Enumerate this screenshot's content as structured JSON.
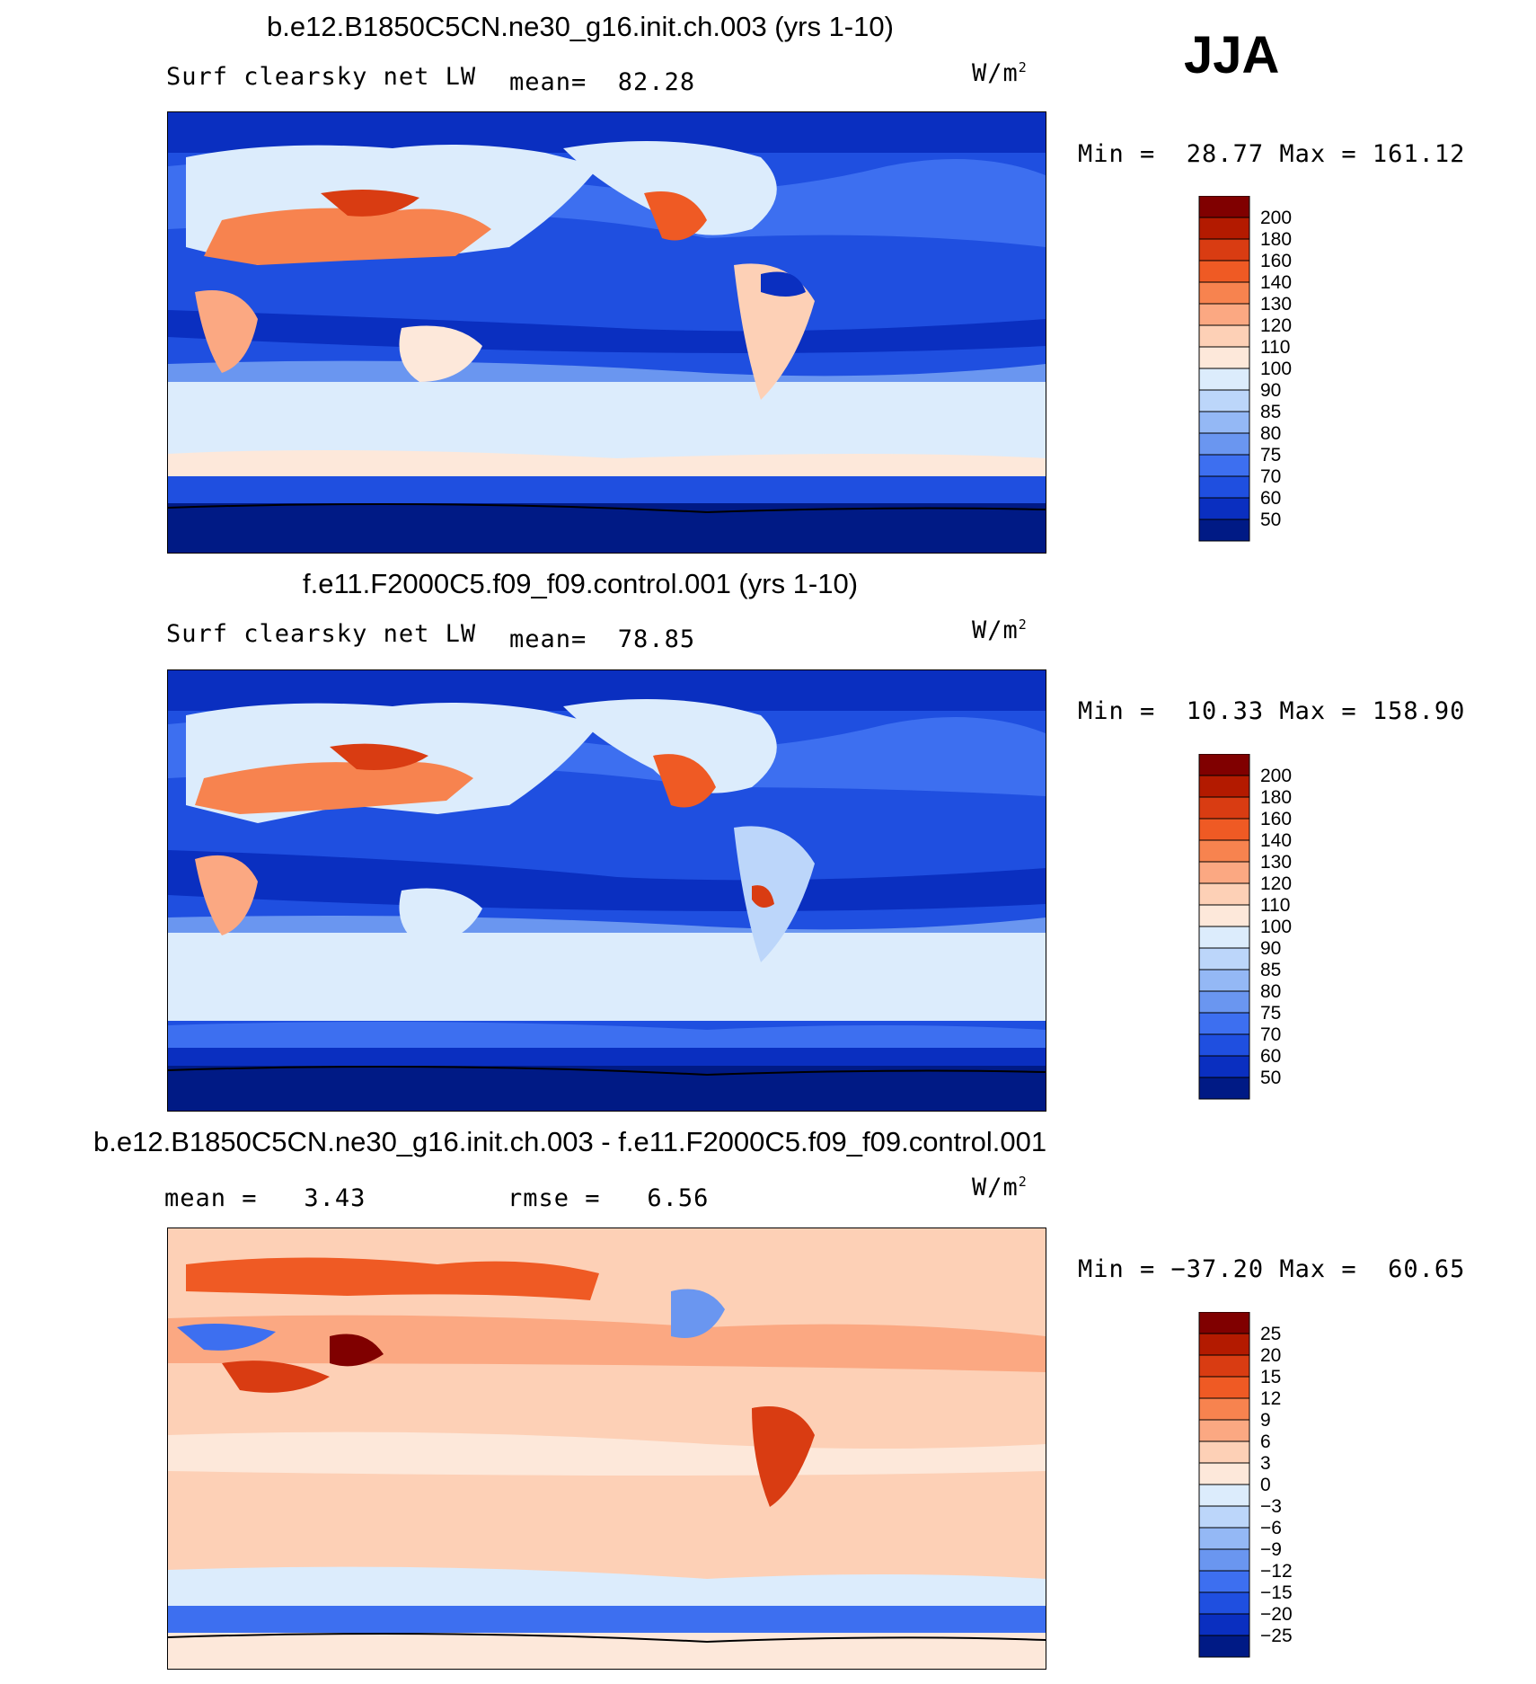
{
  "season": "JJA",
  "panels": [
    {
      "title": "b.e12.B1850C5CN.ne30_g16.init.ch.003 (yrs 1-10)",
      "variable": "Surf clearsky net LW",
      "stat1_label": "mean=",
      "stat1_value": "82.28",
      "units_base": "W/m",
      "units_exp": "2",
      "min_label": "Min =",
      "min_value": "28.77",
      "max_label": "Max =",
      "max_value": "161.12",
      "colorbar": {
        "levels": [
          "200",
          "180",
          "160",
          "140",
          "130",
          "120",
          "110",
          "100",
          "90",
          "85",
          "80",
          "75",
          "70",
          "60",
          "50"
        ],
        "colors": [
          "#800000",
          "#b31a00",
          "#d93c12",
          "#ef5a24",
          "#f7834f",
          "#fba882",
          "#fdd0b6",
          "#fde8da",
          "#dcecfc",
          "#bcd6fa",
          "#94b8f5",
          "#6a96f0",
          "#3d6ff0",
          "#1f4fe0",
          "#0a2fc0",
          "#001a85"
        ]
      }
    },
    {
      "title": "f.e11.F2000C5.f09_f09.control.001 (yrs 1-10)",
      "variable": "Surf clearsky net LW",
      "stat1_label": "mean=",
      "stat1_value": "78.85",
      "units_base": "W/m",
      "units_exp": "2",
      "min_label": "Min =",
      "min_value": "10.33",
      "max_label": "Max =",
      "max_value": "158.90",
      "colorbar": {
        "levels": [
          "200",
          "180",
          "160",
          "140",
          "130",
          "120",
          "110",
          "100",
          "90",
          "85",
          "80",
          "75",
          "70",
          "60",
          "50"
        ],
        "colors": [
          "#800000",
          "#b31a00",
          "#d93c12",
          "#ef5a24",
          "#f7834f",
          "#fba882",
          "#fdd0b6",
          "#fde8da",
          "#dcecfc",
          "#bcd6fa",
          "#94b8f5",
          "#6a96f0",
          "#3d6ff0",
          "#1f4fe0",
          "#0a2fc0",
          "#001a85"
        ]
      }
    },
    {
      "title": "b.e12.B1850C5CN.ne30_g16.init.ch.003 - f.e11.F2000C5.f09_f09.control.001",
      "stat1_label": "mean =",
      "stat1_value": "3.43",
      "stat2_label": "rmse =",
      "stat2_value": "6.56",
      "units_base": "W/m",
      "units_exp": "2",
      "min_label": "Min =",
      "min_value": "−37.20",
      "max_label": "Max =",
      "max_value": "60.65",
      "colorbar": {
        "levels": [
          "25",
          "20",
          "15",
          "12",
          "9",
          "6",
          "3",
          "0",
          "−3",
          "−6",
          "−9",
          "−12",
          "−15",
          "−20",
          "−25"
        ],
        "colors": [
          "#800000",
          "#b31a00",
          "#d93c12",
          "#ef5a24",
          "#f7834f",
          "#fba882",
          "#fdd0b6",
          "#fde8da",
          "#dcecfc",
          "#bcd6fa",
          "#94b8f5",
          "#6a96f0",
          "#3d6ff0",
          "#1f4fe0",
          "#0a2fc0",
          "#001a85"
        ]
      }
    }
  ],
  "chart_data": [
    {
      "type": "heatmap",
      "title": "b.e12.B1850C5CN.ne30_g16.init.ch.003 (yrs 1-10)",
      "variable": "Surf clearsky net LW",
      "season": "JJA",
      "units": "W/m2",
      "mean": 82.28,
      "min": 28.77,
      "max": 161.12,
      "contour_levels": [
        50,
        60,
        70,
        75,
        80,
        85,
        90,
        100,
        110,
        120,
        130,
        140,
        160,
        180,
        200
      ]
    },
    {
      "type": "heatmap",
      "title": "f.e11.F2000C5.f09_f09.control.001 (yrs 1-10)",
      "variable": "Surf clearsky net LW",
      "season": "JJA",
      "units": "W/m2",
      "mean": 78.85,
      "min": 10.33,
      "max": 158.9,
      "contour_levels": [
        50,
        60,
        70,
        75,
        80,
        85,
        90,
        100,
        110,
        120,
        130,
        140,
        160,
        180,
        200
      ]
    },
    {
      "type": "heatmap",
      "title": "b.e12.B1850C5CN.ne30_g16.init.ch.003 - f.e11.F2000C5.f09_f09.control.001",
      "season": "JJA",
      "units": "W/m2",
      "mean": 3.43,
      "rmse": 6.56,
      "min": -37.2,
      "max": 60.65,
      "contour_levels": [
        -25,
        -20,
        -15,
        -12,
        -9,
        -6,
        -3,
        0,
        3,
        6,
        9,
        12,
        15,
        20,
        25
      ]
    }
  ]
}
